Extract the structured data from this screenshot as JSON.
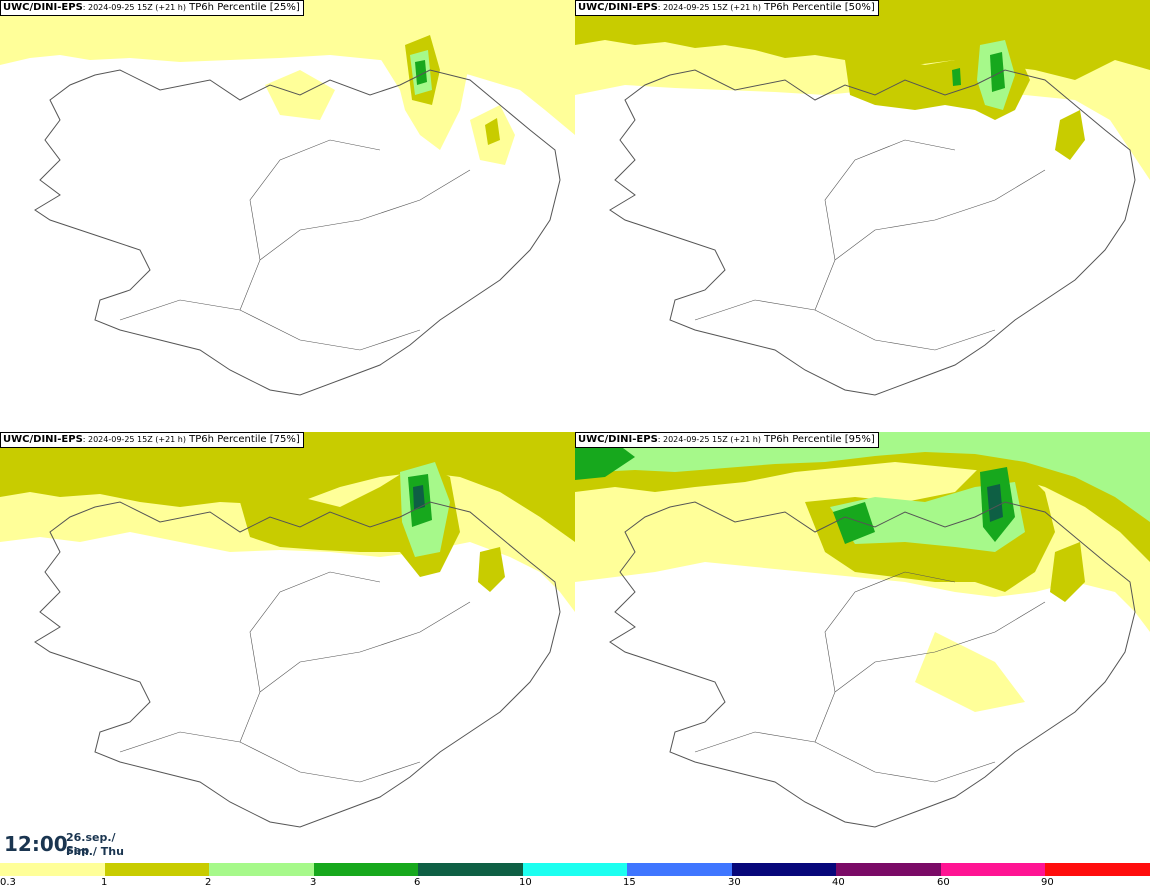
{
  "panels": [
    {
      "model": "UWC/DINI-EPS",
      "run": ": 2024-09-25 15Z (+21 h)",
      "field": "TP6h Percentile [25%]"
    },
    {
      "model": "UWC/DINI-EPS",
      "run": ": 2024-09-25 15Z (+21 h)",
      "field": "TP6h Percentile [50%]"
    },
    {
      "model": "UWC/DINI-EPS",
      "run": ": 2024-09-25 15Z (+21 h)",
      "field": "TP6h Percentile [75%]"
    },
    {
      "model": "UWC/DINI-EPS",
      "run": ": 2024-09-25 15Z (+21 h)",
      "field": "TP6h Percentile [95%]"
    }
  ],
  "valid_time": {
    "time": "12:00",
    "date_line1": "26.sep./ Sep",
    "date_line2": "Fim./ Thu"
  },
  "legend": {
    "colors": [
      "#ffff99",
      "#c8cc00",
      "#a6f98a",
      "#17a81d",
      "#0e5f44",
      "#1dfff0",
      "#3f76ff",
      "#07077a",
      "#7a0a66",
      "#ff1493",
      "#ff0d0d"
    ],
    "ticks": [
      "0.3",
      "1",
      "2",
      "3",
      "6",
      "10",
      "15",
      "30",
      "40",
      "60",
      "90"
    ]
  },
  "palette": {
    "coast": "#555555",
    "background": "#ffffff"
  }
}
